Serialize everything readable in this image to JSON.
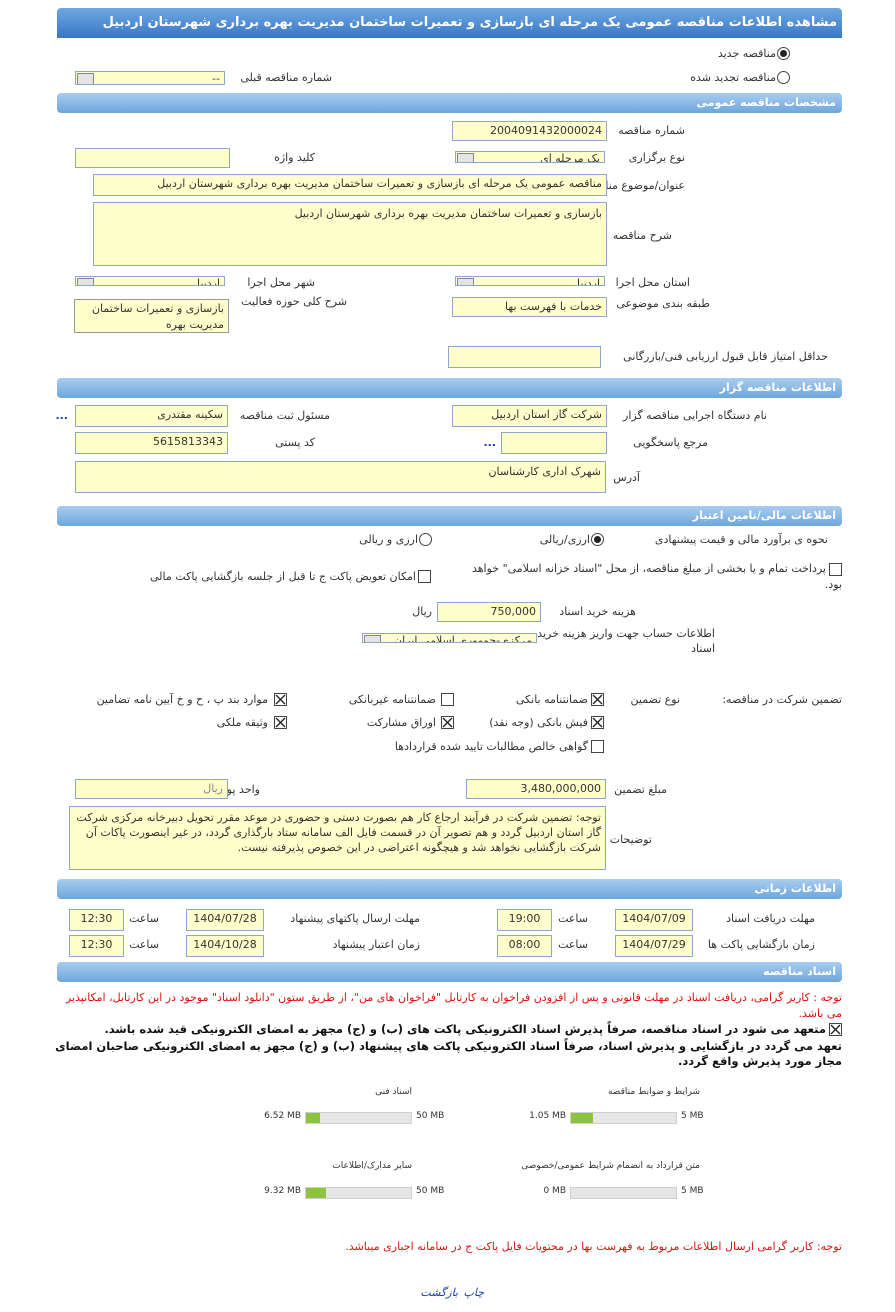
{
  "header": {
    "title": "مشاهده اطلاعات مناقصه عمومی یک مرحله ای بازسازی و تعمیرات ساختمان مدیریت بهره برداری شهرستان اردبیل"
  },
  "tender_kind": {
    "options": [
      {
        "label": "مناقصه جدید",
        "selected": true
      },
      {
        "label": "مناقصه تجدید شده",
        "selected": false
      }
    ],
    "previous_number_label": "شماره مناقصه قبلی",
    "previous_number": "--"
  },
  "general": {
    "title": "مشخصات مناقصه عمومی",
    "number_label": "شماره مناقصه",
    "number": "2004091432000024",
    "holding_type_label": "نوع برگزاری",
    "holding_type": "یک مرحله ای",
    "keyword_label": "کلید واژه",
    "subject_label": "عنوان/موضوع مناقصه",
    "subject": "مناقصه عمومی یک مرحله ای بازسازی و تعمیرات ساختمان مدیریت بهره برداری شهرستان اردبیل",
    "description_label": "شرح مناقصه",
    "description": "بازسازی و تعمیرات ساختمان مدیریت بهره برداری شهرستان اردبیل",
    "province_label": "استان محل اجرا",
    "province": "اردبیل",
    "city_label": "شهر محل اجرا",
    "city": "اردبیل",
    "category_label": "طبقه بندی موضوعی",
    "category": "خدمات با فهرست بها",
    "activity_label": "شرح کلی حوزه فعالیت",
    "activity": "بازسازی و تعمیرات ساختمان مدیریت بهره",
    "min_score_label": "حداقل امتیاز قابل قبول ارزیابی فنی/بازرگانی"
  },
  "organizer": {
    "title": "اطلاعات مناقصه گزار",
    "agency_label": "نام دستگاه اجرایی مناقصه گزار",
    "agency": "شرکت گاز استان اردبیل",
    "registrar_label": "مسئول ثبت مناقصه",
    "registrar": "سکینه  مقتدری",
    "registrar_more": "...",
    "contact_label": "مرجع پاسخگویی",
    "contact_more": "...",
    "postal_code_label": "کد پستی",
    "postal_code": "5615813343",
    "address_label": "آدرس",
    "address": "شهرک اداری کارشناسان"
  },
  "finance": {
    "title": "اطلاعات مالی/تامین اعتبار",
    "estimate_label": "نحوه ی برآورد مالی و قیمت پیشنهادی",
    "estimate_options": [
      {
        "label": "ارزی/ریالی",
        "selected": true
      },
      {
        "label": "ارزی و ریالی",
        "selected": false
      }
    ],
    "treasury": {
      "label": "پرداخت تمام و یا بخشی از مبلغ مناقصه، از محل \"اسناد خزانه اسلامی\" خواهد بود.",
      "checked": false
    },
    "envelope_swap": {
      "label": "امکان تعویض پاکت ج تا قبل از جلسه بازگشایی پاکت مالی",
      "checked": false
    },
    "doc_fee_label": "هزینه خرید اسناد",
    "doc_fee": "750,000",
    "doc_fee_unit": "ریال",
    "account_label": "اطلاعات حساب جهت واریز هزینه خرید اسناد",
    "account": "مرکزی-جمهوری اسلامی ایران",
    "guarantee_label": "تضمین شرکت در مناقصه:",
    "guarantee_type_label": "نوع تضمین",
    "guarantee_types": [
      {
        "label": "ضمانتنامه بانکی",
        "checked": true
      },
      {
        "label": "ضمانتنامه غیربانکی",
        "checked": false
      },
      {
        "label": "موارد بند پ ، ح و خ آیین نامه تضامین",
        "checked": true
      },
      {
        "label": "فیش بانکی (وجه نقد)",
        "checked": true
      },
      {
        "label": "اوراق مشارکت",
        "checked": true
      },
      {
        "label": "وثیقه ملکی",
        "checked": true
      },
      {
        "label": "گواهی خالص مطالبات تایید شده قراردادها",
        "checked": false
      }
    ],
    "guarantee_amount_label": "مبلغ تضمین",
    "guarantee_amount": "3,480,000,000",
    "currency_label": "واحد پول",
    "currency": "ریال",
    "notes_label": "توضیحات",
    "notes": "توجه: تضمین شرکت در فرآیند ارجاع کار هم بصورت دستی و حضوری در موعد مقرر تحویل دبیرخانه مرکزی شرکت گاز استان اردبیل گردد و هم تصویر آن در قسمت فایل الف سامانه ستاد بارگذاری گردد، در غیر اینصورت پاکات آن شرکت بازگشایی نخواهد شد و هیچگونه اعتراضی در این خصوص پذیرفته نیست."
  },
  "timing": {
    "title": "اطلاعات زمانی",
    "time_label": "ساعت",
    "items": [
      {
        "label": "مهلت دریافت اسناد",
        "date": "1404/07/09",
        "time": "19:00"
      },
      {
        "label": "مهلت ارسال پاکتهای پیشنهاد",
        "date": "1404/07/28",
        "time": "12:30"
      },
      {
        "label": "زمان بازگشایی پاکت ها",
        "date": "1404/07/29",
        "time": "08:00"
      },
      {
        "label": "زمان اعتبار پیشنهاد",
        "date": "1404/10/28",
        "time": "12:30"
      }
    ]
  },
  "documents": {
    "title": "اسناد مناقصه",
    "note": "توجه : کاربر گرامی، دریافت اسناد در مهلت قانونی و پس از افزودن فراخوان به کارتابل \"فراخوان های من\"، از طریق ستون \"دانلود اسناد\" موجود در این کارتابل، امکانپذیر می باشد.",
    "commitment": {
      "label": "متعهد می شود در اسناد مناقصه، صرفاً پذیرش اسناد الکترونیکی پاکت های (ب) و (ج) مجهز به امضای الکترونیکی قید شده باشد.",
      "checked": true
    },
    "commitment2": "تعهد می گردد در بازگشایی و پذیرش اسناد، صرفاً اسناد الکترونیکی پاکت های پیشنهاد (ب) و (ج) مجهز به امضای الکترونیکی صاحبان امضای مجاز مورد پذیرش واقع گردد.",
    "files": [
      {
        "name": "شرایط و ضوابط مناقصه",
        "used": 1.05,
        "used_label": "1.05 MB",
        "limit": 5,
        "limit_label": "5 MB"
      },
      {
        "name": "اسناد فنی",
        "used": 6.52,
        "used_label": "6.52 MB",
        "limit": 50,
        "limit_label": "50 MB"
      },
      {
        "name": "متن قرارداد به انضمام شرایط عمومی/خصوصی",
        "used": 0,
        "used_label": "0 MB",
        "limit": 5,
        "limit_label": "5 MB"
      },
      {
        "name": "سایر مدارک/اطلاعات",
        "used": 9.32,
        "used_label": "9.32 MB",
        "limit": 50,
        "limit_label": "50 MB"
      }
    ],
    "footer_note": "توجه: کاربر گرامی ارسال اطلاعات مربوط به فهرست بها در محتویات فایل پاکت ج در سامانه اجباری میباشد."
  },
  "actions": {
    "print": "چاپ",
    "back": "بازگشت"
  }
}
